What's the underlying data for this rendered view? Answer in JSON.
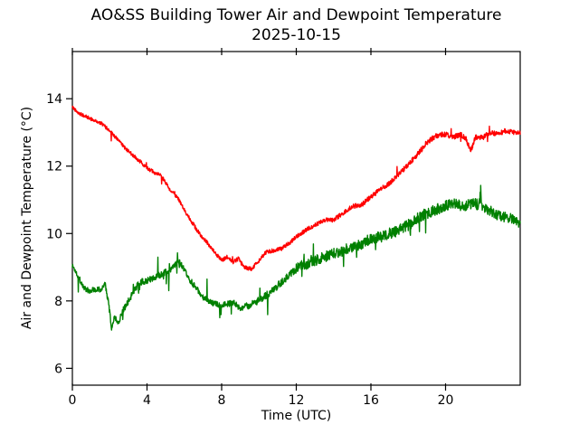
{
  "figure": {
    "title": "AO&SS Building Tower Air and Dewpoint Temperature",
    "subtitle": "2025-10-15",
    "background_color": "#ffffff",
    "axis_color": "#000000"
  },
  "chart_data": {
    "type": "line",
    "title": "AO&SS Building Tower Air and Dewpoint Temperature",
    "subtitle": "2025-10-15",
    "xlabel": "Time (UTC)",
    "ylabel": "Air and Dewpoint Temperature (°C)",
    "xlim": [
      0,
      24
    ],
    "ylim": [
      5.5,
      15.4
    ],
    "x_ticks": [
      0,
      4,
      8,
      12,
      16,
      20
    ],
    "y_ticks": [
      6,
      8,
      10,
      12,
      14
    ],
    "grid": false,
    "legend": "none",
    "series": [
      {
        "name": "air_temperature",
        "color": "#ff0000",
        "anchors": [
          [
            0.0,
            13.75
          ],
          [
            0.4,
            13.55
          ],
          [
            0.8,
            13.45
          ],
          [
            1.2,
            13.35
          ],
          [
            1.6,
            13.25
          ],
          [
            2.0,
            13.05
          ],
          [
            2.4,
            12.8
          ],
          [
            2.8,
            12.55
          ],
          [
            3.2,
            12.35
          ],
          [
            3.6,
            12.15
          ],
          [
            4.0,
            11.95
          ],
          [
            4.4,
            11.8
          ],
          [
            4.8,
            11.7
          ],
          [
            5.0,
            11.5
          ],
          [
            5.3,
            11.25
          ],
          [
            5.6,
            11.1
          ],
          [
            6.0,
            10.7
          ],
          [
            6.4,
            10.35
          ],
          [
            6.8,
            10.0
          ],
          [
            7.2,
            9.75
          ],
          [
            7.6,
            9.45
          ],
          [
            8.0,
            9.2
          ],
          [
            8.3,
            9.3
          ],
          [
            8.6,
            9.15
          ],
          [
            8.9,
            9.25
          ],
          [
            9.2,
            9.0
          ],
          [
            9.6,
            8.95
          ],
          [
            10.0,
            9.2
          ],
          [
            10.4,
            9.45
          ],
          [
            10.8,
            9.5
          ],
          [
            11.2,
            9.55
          ],
          [
            11.6,
            9.7
          ],
          [
            12.0,
            9.9
          ],
          [
            12.5,
            10.1
          ],
          [
            13.0,
            10.25
          ],
          [
            13.5,
            10.4
          ],
          [
            14.0,
            10.4
          ],
          [
            14.5,
            10.6
          ],
          [
            15.0,
            10.8
          ],
          [
            15.5,
            10.85
          ],
          [
            16.0,
            11.1
          ],
          [
            16.5,
            11.3
          ],
          [
            17.0,
            11.5
          ],
          [
            17.5,
            11.75
          ],
          [
            18.0,
            12.05
          ],
          [
            18.5,
            12.35
          ],
          [
            19.0,
            12.7
          ],
          [
            19.5,
            12.9
          ],
          [
            20.0,
            12.95
          ],
          [
            20.4,
            12.85
          ],
          [
            20.8,
            12.95
          ],
          [
            21.1,
            12.8
          ],
          [
            21.35,
            12.45
          ],
          [
            21.6,
            12.85
          ],
          [
            22.0,
            12.85
          ],
          [
            22.4,
            13.0
          ],
          [
            22.8,
            12.95
          ],
          [
            23.2,
            13.05
          ],
          [
            23.6,
            13.0
          ],
          [
            24.0,
            13.0
          ]
        ],
        "noise": {
          "seed": 42,
          "amp_points": [
            [
              0,
              0.05
            ],
            [
              8,
              0.06
            ],
            [
              12,
              0.06
            ],
            [
              16,
              0.07
            ],
            [
              19,
              0.08
            ],
            [
              24,
              0.07
            ]
          ],
          "spike_prob": 0.015,
          "spike_amp": 0.15
        }
      },
      {
        "name": "dewpoint_temperature",
        "color": "#008000",
        "anchors": [
          [
            0.0,
            9.05
          ],
          [
            0.3,
            8.75
          ],
          [
            0.6,
            8.4
          ],
          [
            0.9,
            8.3
          ],
          [
            1.2,
            8.35
          ],
          [
            1.5,
            8.35
          ],
          [
            1.75,
            8.5
          ],
          [
            1.95,
            7.9
          ],
          [
            2.1,
            7.15
          ],
          [
            2.25,
            7.55
          ],
          [
            2.45,
            7.35
          ],
          [
            2.7,
            7.7
          ],
          [
            3.0,
            8.0
          ],
          [
            3.3,
            8.3
          ],
          [
            3.6,
            8.55
          ],
          [
            4.0,
            8.6
          ],
          [
            4.4,
            8.7
          ],
          [
            4.8,
            8.8
          ],
          [
            5.2,
            8.9
          ],
          [
            5.5,
            9.05
          ],
          [
            5.7,
            9.2
          ],
          [
            5.9,
            9.0
          ],
          [
            6.2,
            8.7
          ],
          [
            6.6,
            8.4
          ],
          [
            7.0,
            8.1
          ],
          [
            7.4,
            7.95
          ],
          [
            7.8,
            7.9
          ],
          [
            8.2,
            7.9
          ],
          [
            8.6,
            7.95
          ],
          [
            9.0,
            7.8
          ],
          [
            9.4,
            7.85
          ],
          [
            9.8,
            7.95
          ],
          [
            10.2,
            8.1
          ],
          [
            10.6,
            8.25
          ],
          [
            11.0,
            8.45
          ],
          [
            11.4,
            8.65
          ],
          [
            11.8,
            8.9
          ],
          [
            12.2,
            9.05
          ],
          [
            12.6,
            9.1
          ],
          [
            13.0,
            9.2
          ],
          [
            13.5,
            9.3
          ],
          [
            14.0,
            9.4
          ],
          [
            14.5,
            9.5
          ],
          [
            15.0,
            9.6
          ],
          [
            15.5,
            9.7
          ],
          [
            16.0,
            9.85
          ],
          [
            16.5,
            9.9
          ],
          [
            17.0,
            10.0
          ],
          [
            17.5,
            10.1
          ],
          [
            18.0,
            10.25
          ],
          [
            18.5,
            10.45
          ],
          [
            19.0,
            10.6
          ],
          [
            19.5,
            10.7
          ],
          [
            20.0,
            10.85
          ],
          [
            20.5,
            10.9
          ],
          [
            21.0,
            10.8
          ],
          [
            21.4,
            10.9
          ],
          [
            21.8,
            10.85
          ],
          [
            21.88,
            11.3
          ],
          [
            21.95,
            10.85
          ],
          [
            22.3,
            10.7
          ],
          [
            22.7,
            10.55
          ],
          [
            23.1,
            10.5
          ],
          [
            23.5,
            10.45
          ],
          [
            24.0,
            10.3
          ]
        ],
        "noise": {
          "seed": 1337,
          "amp_points": [
            [
              0,
              0.08
            ],
            [
              2,
              0.09
            ],
            [
              4,
              0.1
            ],
            [
              8,
              0.09
            ],
            [
              11,
              0.11
            ],
            [
              12.5,
              0.16
            ],
            [
              17,
              0.17
            ],
            [
              22,
              0.16
            ],
            [
              24,
              0.14
            ]
          ],
          "spike_prob": 0.03,
          "spike_amp": 0.3
        }
      }
    ]
  }
}
